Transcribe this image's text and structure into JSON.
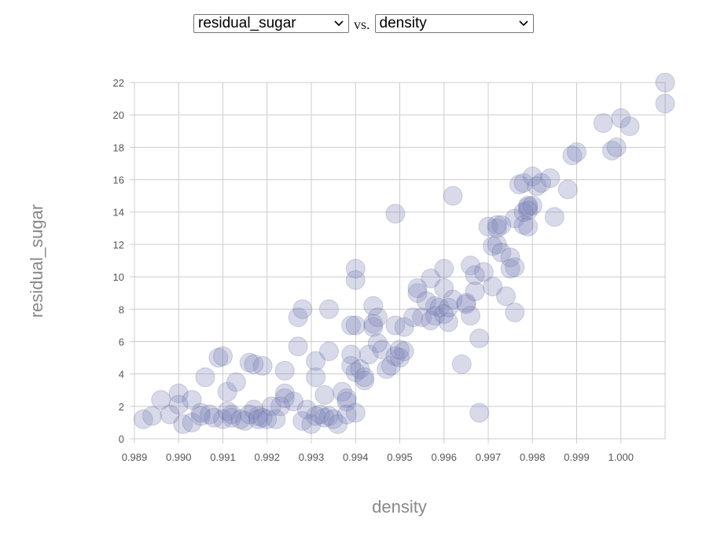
{
  "controls": {
    "y_select": "residual_sugar",
    "vs_label": "vs.",
    "x_select": "density"
  },
  "colors": {
    "point_fill": "#7f86ba",
    "point_stroke": "#5c6394",
    "grid": "#cccccc",
    "axis_title": "#888888"
  },
  "chart_data": {
    "type": "scatter",
    "title": "",
    "xlabel": "density",
    "ylabel": "residual_sugar",
    "xlim": [
      0.989,
      1.001
    ],
    "ylim": [
      0,
      22
    ],
    "grid": true,
    "x_ticks": [
      "0.989",
      "0.990",
      "0.991",
      "0.992",
      "0.993",
      "0.994",
      "0.995",
      "0.996",
      "0.997",
      "0.998",
      "0.999",
      "1.000"
    ],
    "y_ticks": [
      "0",
      "2",
      "4",
      "6",
      "8",
      "10",
      "12",
      "14",
      "16",
      "18",
      "20",
      "22"
    ],
    "series": [
      {
        "points": [
          [
            0.9892,
            1.2
          ],
          [
            0.9894,
            1.4
          ],
          [
            0.9896,
            2.4
          ],
          [
            0.9898,
            1.5
          ],
          [
            0.99,
            2.8
          ],
          [
            0.99,
            2.1
          ],
          [
            0.9901,
            0.9
          ],
          [
            0.9903,
            2.4
          ],
          [
            0.9903,
            1.0
          ],
          [
            0.9905,
            1.6
          ],
          [
            0.9905,
            1.4
          ],
          [
            0.9906,
            3.8
          ],
          [
            0.9907,
            1.5
          ],
          [
            0.9908,
            1.3
          ],
          [
            0.9909,
            5.0
          ],
          [
            0.991,
            5.1
          ],
          [
            0.991,
            1.2
          ],
          [
            0.9911,
            1.7
          ],
          [
            0.9911,
            2.9
          ],
          [
            0.9912,
            1.3
          ],
          [
            0.9912,
            1.5
          ],
          [
            0.9913,
            3.5
          ],
          [
            0.9914,
            1.2
          ],
          [
            0.9915,
            1.1
          ],
          [
            0.9916,
            1.5
          ],
          [
            0.9916,
            4.7
          ],
          [
            0.9917,
            4.6
          ],
          [
            0.9917,
            1.8
          ],
          [
            0.9918,
            1.4
          ],
          [
            0.9918,
            1.2
          ],
          [
            0.9919,
            4.5
          ],
          [
            0.9919,
            1.3
          ],
          [
            0.992,
            1.2
          ],
          [
            0.9921,
            2.0
          ],
          [
            0.9922,
            1.2
          ],
          [
            0.9923,
            2.0
          ],
          [
            0.9924,
            4.2
          ],
          [
            0.9924,
            2.8
          ],
          [
            0.9924,
            2.5
          ],
          [
            0.9926,
            2.3
          ],
          [
            0.9927,
            5.7
          ],
          [
            0.9927,
            7.5
          ],
          [
            0.9928,
            8.0
          ],
          [
            0.9928,
            1.1
          ],
          [
            0.9929,
            1.8
          ],
          [
            0.993,
            0.9
          ],
          [
            0.9931,
            1.4
          ],
          [
            0.9931,
            3.8
          ],
          [
            0.9931,
            4.8
          ],
          [
            0.9932,
            1.5
          ],
          [
            0.9933,
            1.3
          ],
          [
            0.9933,
            2.7
          ],
          [
            0.9934,
            1.4
          ],
          [
            0.9934,
            8.0
          ],
          [
            0.9934,
            5.4
          ],
          [
            0.9935,
            1.2
          ],
          [
            0.9936,
            0.9
          ],
          [
            0.9937,
            2.9
          ],
          [
            0.9938,
            2.5
          ],
          [
            0.9938,
            2.3
          ],
          [
            0.9938,
            1.5
          ],
          [
            0.9939,
            7.0
          ],
          [
            0.9939,
            5.2
          ],
          [
            0.9939,
            4.5
          ],
          [
            0.994,
            7.0
          ],
          [
            0.994,
            4.1
          ],
          [
            0.994,
            1.6
          ],
          [
            0.994,
            10.5
          ],
          [
            0.994,
            9.8
          ],
          [
            0.9941,
            4.3
          ],
          [
            0.9942,
            3.6
          ],
          [
            0.9942,
            3.8
          ],
          [
            0.9943,
            5.2
          ],
          [
            0.9944,
            8.2
          ],
          [
            0.9944,
            7.1
          ],
          [
            0.9944,
            6.9
          ],
          [
            0.9945,
            7.5
          ],
          [
            0.9945,
            5.9
          ],
          [
            0.9946,
            5.5
          ],
          [
            0.9947,
            4.3
          ],
          [
            0.9948,
            4.5
          ],
          [
            0.9949,
            7.0
          ],
          [
            0.9949,
            13.9
          ],
          [
            0.9949,
            5.1
          ],
          [
            0.995,
            5.0
          ],
          [
            0.995,
            5.5
          ],
          [
            0.9951,
            6.9
          ],
          [
            0.9951,
            5.4
          ],
          [
            0.9953,
            7.5
          ],
          [
            0.9954,
            9.0
          ],
          [
            0.9954,
            9.3
          ],
          [
            0.9955,
            7.5
          ],
          [
            0.9956,
            8.5
          ],
          [
            0.9957,
            7.3
          ],
          [
            0.9957,
            9.9
          ],
          [
            0.9958,
            8.2
          ],
          [
            0.9958,
            7.6
          ],
          [
            0.9959,
            8.1
          ],
          [
            0.996,
            10.5
          ],
          [
            0.996,
            7.7
          ],
          [
            0.996,
            9.3
          ],
          [
            0.9961,
            7.2
          ],
          [
            0.9961,
            8.1
          ],
          [
            0.9962,
            8.6
          ],
          [
            0.9962,
            15.0
          ],
          [
            0.9964,
            4.6
          ],
          [
            0.9965,
            8.3
          ],
          [
            0.9965,
            8.4
          ],
          [
            0.9966,
            10.7
          ],
          [
            0.9966,
            7.6
          ],
          [
            0.9967,
            9.1
          ],
          [
            0.9967,
            10.1
          ],
          [
            0.9968,
            6.2
          ],
          [
            0.9968,
            1.6
          ],
          [
            0.9969,
            10.3
          ],
          [
            0.997,
            13.1
          ],
          [
            0.9971,
            11.9
          ],
          [
            0.9971,
            9.4
          ],
          [
            0.9972,
            13.0
          ],
          [
            0.9972,
            12.0
          ],
          [
            0.9972,
            13.2
          ],
          [
            0.9973,
            13.2
          ],
          [
            0.9973,
            11.5
          ],
          [
            0.9974,
            8.8
          ],
          [
            0.9975,
            11.2
          ],
          [
            0.9975,
            10.5
          ],
          [
            0.9976,
            13.6
          ],
          [
            0.9976,
            10.6
          ],
          [
            0.9976,
            7.8
          ],
          [
            0.9977,
            15.7
          ],
          [
            0.9978,
            13.2
          ],
          [
            0.9978,
            14.0
          ],
          [
            0.9978,
            15.8
          ],
          [
            0.9979,
            14.4
          ],
          [
            0.9979,
            14.1
          ],
          [
            0.9979,
            14.3
          ],
          [
            0.9979,
            13.1
          ],
          [
            0.998,
            16.2
          ],
          [
            0.998,
            14.4
          ],
          [
            0.9981,
            15.6
          ],
          [
            0.9982,
            15.8
          ],
          [
            0.9984,
            16.1
          ],
          [
            0.9985,
            13.7
          ],
          [
            0.9988,
            15.4
          ],
          [
            0.9989,
            17.5
          ],
          [
            0.999,
            17.7
          ],
          [
            0.9996,
            19.5
          ],
          [
            0.9998,
            17.8
          ],
          [
            0.9999,
            18.0
          ],
          [
            1.0,
            19.8
          ],
          [
            1.0002,
            19.3
          ],
          [
            1.001,
            22.0
          ],
          [
            1.001,
            20.7
          ]
        ]
      }
    ]
  }
}
